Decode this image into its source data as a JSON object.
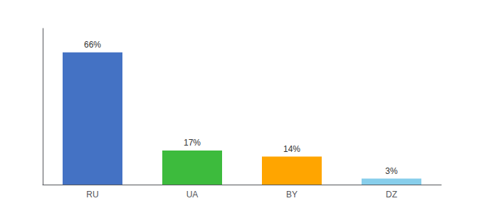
{
  "chart_data": {
    "type": "bar",
    "categories": [
      "RU",
      "UA",
      "BY",
      "DZ"
    ],
    "values": [
      66,
      17,
      14,
      3
    ],
    "value_labels": [
      "66%",
      "17%",
      "14%",
      "3%"
    ],
    "colors": [
      "#4472C4",
      "#3DBB3D",
      "#FFA500",
      "#87CEEB"
    ],
    "ylim": [
      0,
      78
    ],
    "grid": false,
    "tick_labels": "x",
    "data_labels": true
  }
}
